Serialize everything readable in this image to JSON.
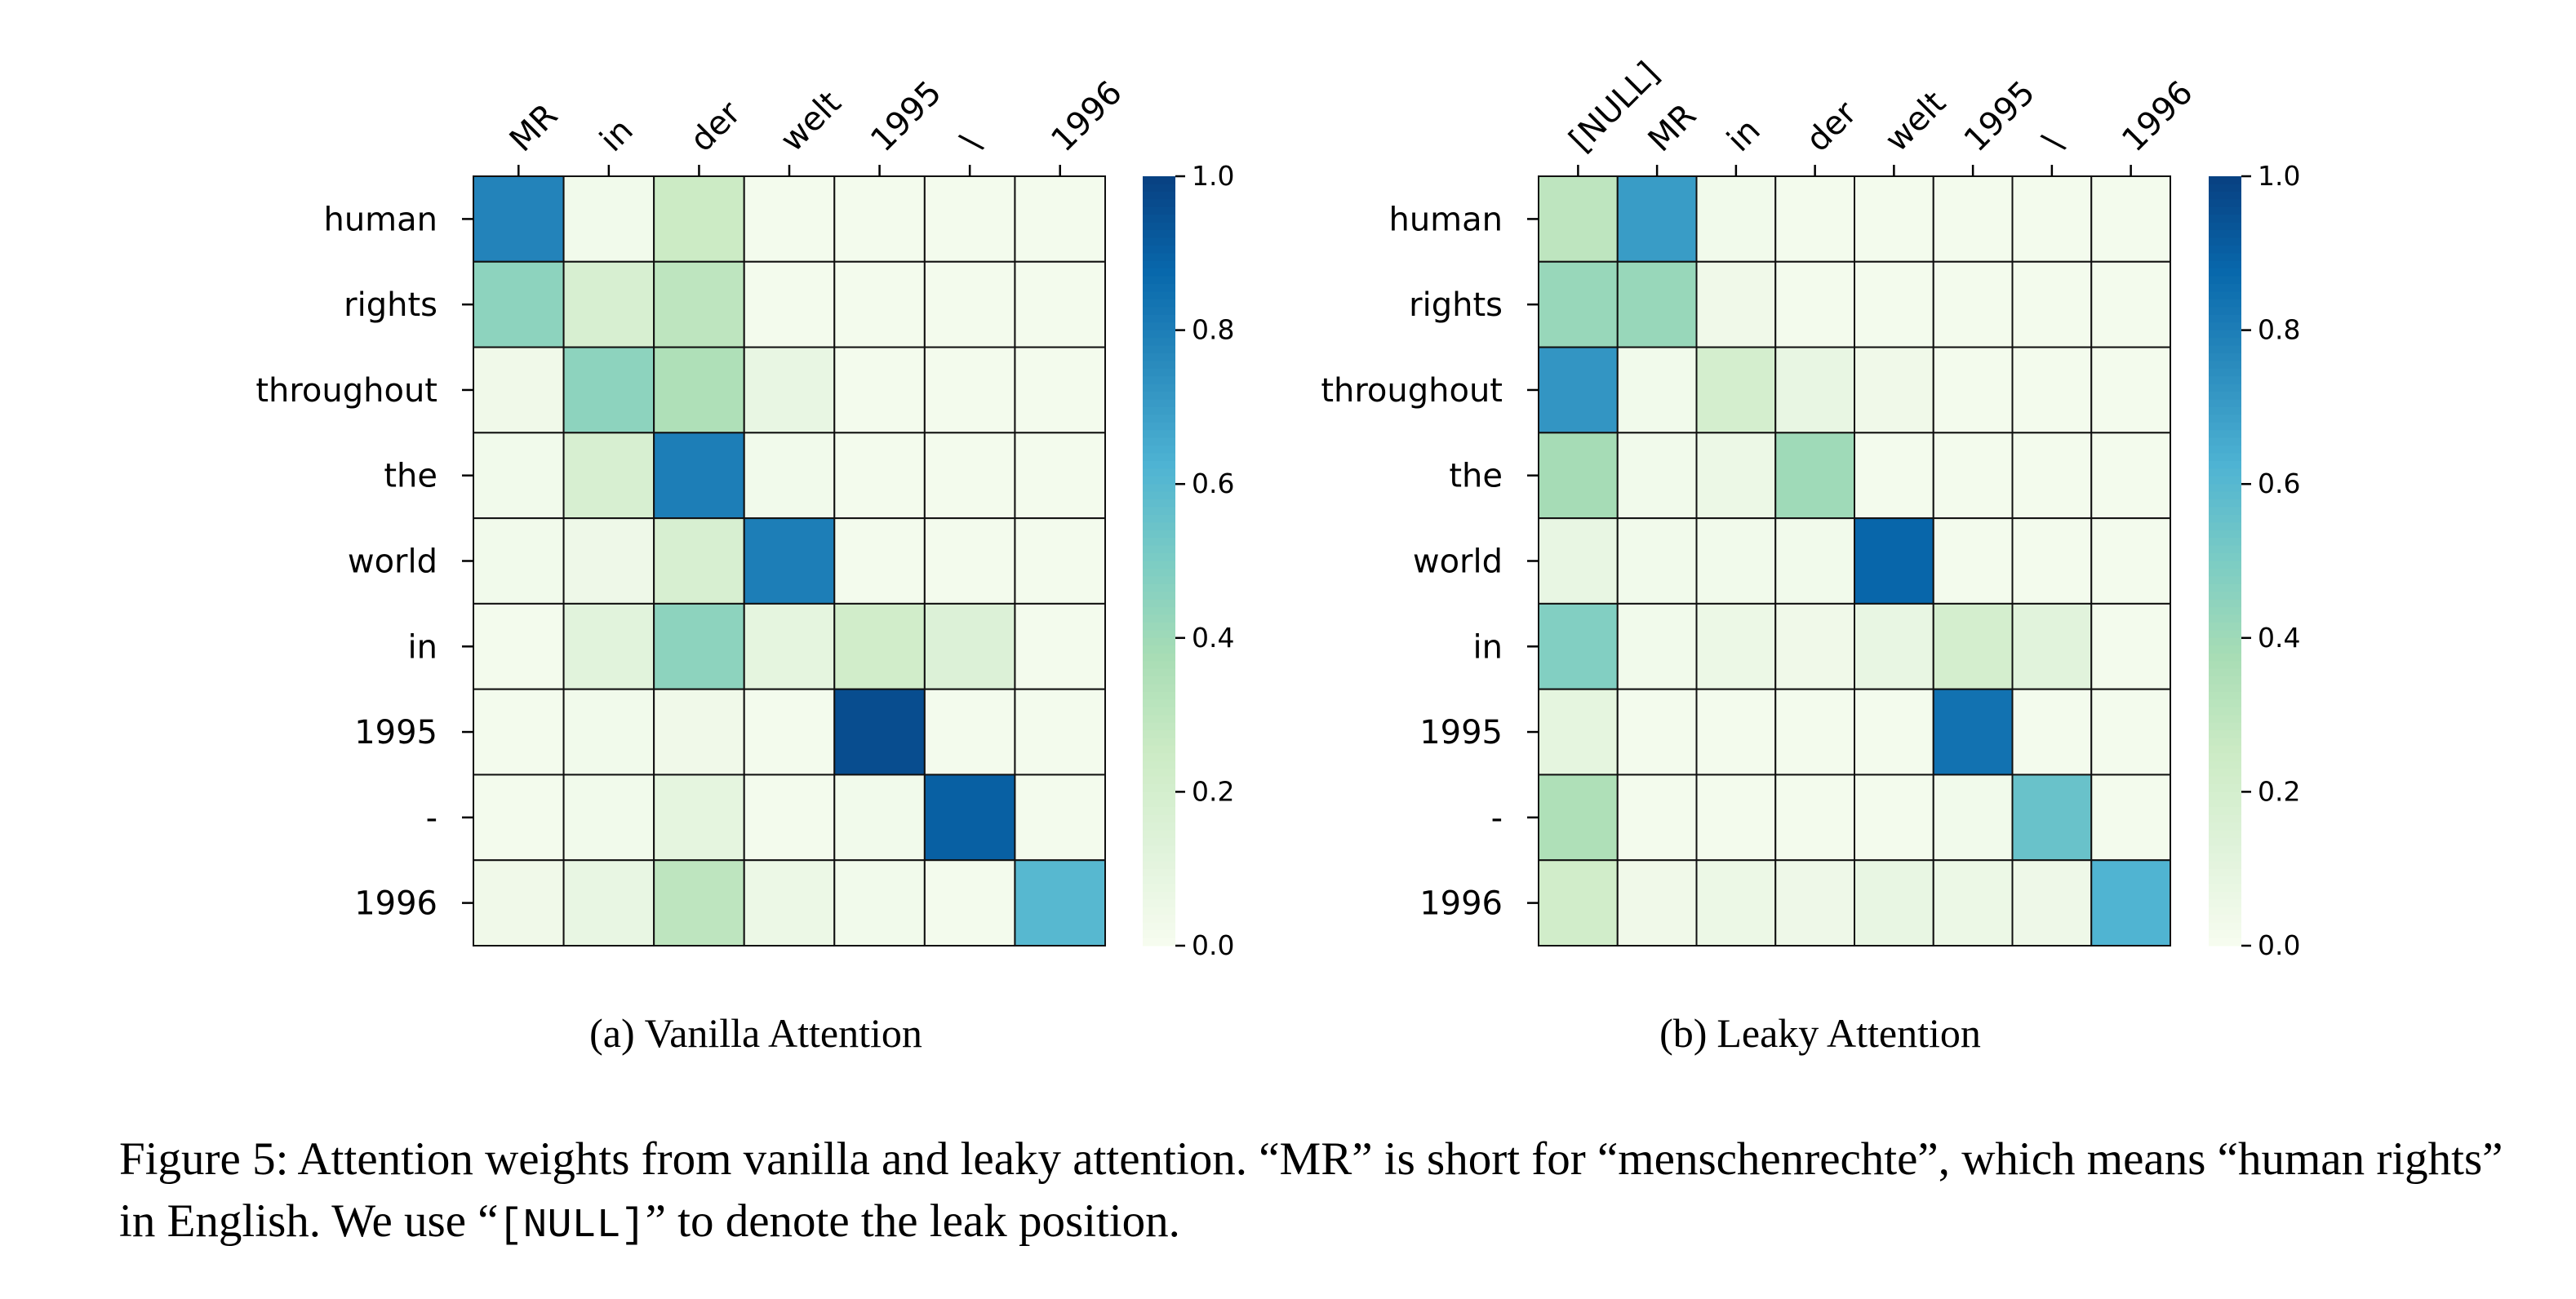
{
  "chart_data": [
    {
      "type": "heatmap",
      "subfigure_label": "(a)",
      "title": "Vanilla Attention",
      "x_labels": [
        "MR",
        "in",
        "der",
        "welt",
        "1995",
        "\\",
        "1996"
      ],
      "y_labels": [
        "human",
        "rights",
        "throughout",
        "the",
        "world",
        "in",
        "1995",
        "-",
        "1996"
      ],
      "values": [
        [
          0.78,
          0.03,
          0.25,
          0.02,
          0.02,
          0.02,
          0.02
        ],
        [
          0.45,
          0.18,
          0.3,
          0.02,
          0.02,
          0.02,
          0.02
        ],
        [
          0.04,
          0.45,
          0.35,
          0.08,
          0.02,
          0.02,
          0.02
        ],
        [
          0.03,
          0.18,
          0.8,
          0.03,
          0.02,
          0.02,
          0.02
        ],
        [
          0.03,
          0.05,
          0.18,
          0.8,
          0.02,
          0.02,
          0.02
        ],
        [
          0.02,
          0.12,
          0.45,
          0.1,
          0.22,
          0.15,
          0.02
        ],
        [
          0.02,
          0.03,
          0.04,
          0.02,
          0.96,
          0.02,
          0.02
        ],
        [
          0.02,
          0.03,
          0.1,
          0.02,
          0.03,
          0.9,
          0.02
        ],
        [
          0.04,
          0.08,
          0.3,
          0.06,
          0.03,
          0.02,
          0.6
        ]
      ],
      "colorbar": {
        "min": 0.0,
        "max": 1.0,
        "ticks": [
          "0.0",
          "0.2",
          "0.4",
          "0.6",
          "0.8",
          "1.0"
        ]
      },
      "colormap": [
        "#f7fcf0",
        "#e0f3db",
        "#ccebc5",
        "#a8ddb5",
        "#7bccc4",
        "#4eb3d3",
        "#2b8cbe",
        "#0868ac",
        "#084081"
      ]
    },
    {
      "type": "heatmap",
      "subfigure_label": "(b)",
      "title": "Leaky Attention",
      "x_labels": [
        "[NULL]",
        "MR",
        "in",
        "der",
        "welt",
        "1995",
        "\\",
        "1996"
      ],
      "y_labels": [
        "human",
        "rights",
        "throughout",
        "the",
        "world",
        "in",
        "1995",
        "-",
        "1996"
      ],
      "values": [
        [
          0.3,
          0.7,
          0.03,
          0.02,
          0.02,
          0.02,
          0.02,
          0.02
        ],
        [
          0.42,
          0.42,
          0.04,
          0.02,
          0.02,
          0.02,
          0.02,
          0.02
        ],
        [
          0.72,
          0.03,
          0.2,
          0.08,
          0.04,
          0.02,
          0.02,
          0.02
        ],
        [
          0.38,
          0.03,
          0.06,
          0.4,
          0.02,
          0.02,
          0.02,
          0.02
        ],
        [
          0.08,
          0.03,
          0.03,
          0.03,
          0.88,
          0.02,
          0.02,
          0.02
        ],
        [
          0.48,
          0.03,
          0.06,
          0.04,
          0.08,
          0.2,
          0.12,
          0.02
        ],
        [
          0.1,
          0.02,
          0.02,
          0.02,
          0.02,
          0.84,
          0.02,
          0.02
        ],
        [
          0.35,
          0.02,
          0.02,
          0.02,
          0.02,
          0.03,
          0.55,
          0.02
        ],
        [
          0.22,
          0.04,
          0.06,
          0.05,
          0.08,
          0.06,
          0.05,
          0.62
        ]
      ],
      "colorbar": {
        "min": 0.0,
        "max": 1.0,
        "ticks": [
          "0.0",
          "0.2",
          "0.4",
          "0.6",
          "0.8",
          "1.0"
        ]
      },
      "colormap": [
        "#f7fcf0",
        "#e0f3db",
        "#ccebc5",
        "#a8ddb5",
        "#7bccc4",
        "#4eb3d3",
        "#2b8cbe",
        "#0868ac",
        "#084081"
      ]
    }
  ],
  "caption": {
    "label": "Figure 5:",
    "part1": " Attention weights from vanilla and leaky attention. “MR” is short for “menschenrechte”, which means “human rights” in English. We use “",
    "null_token": "[NULL]",
    "part2": "” to denote the leak position."
  }
}
